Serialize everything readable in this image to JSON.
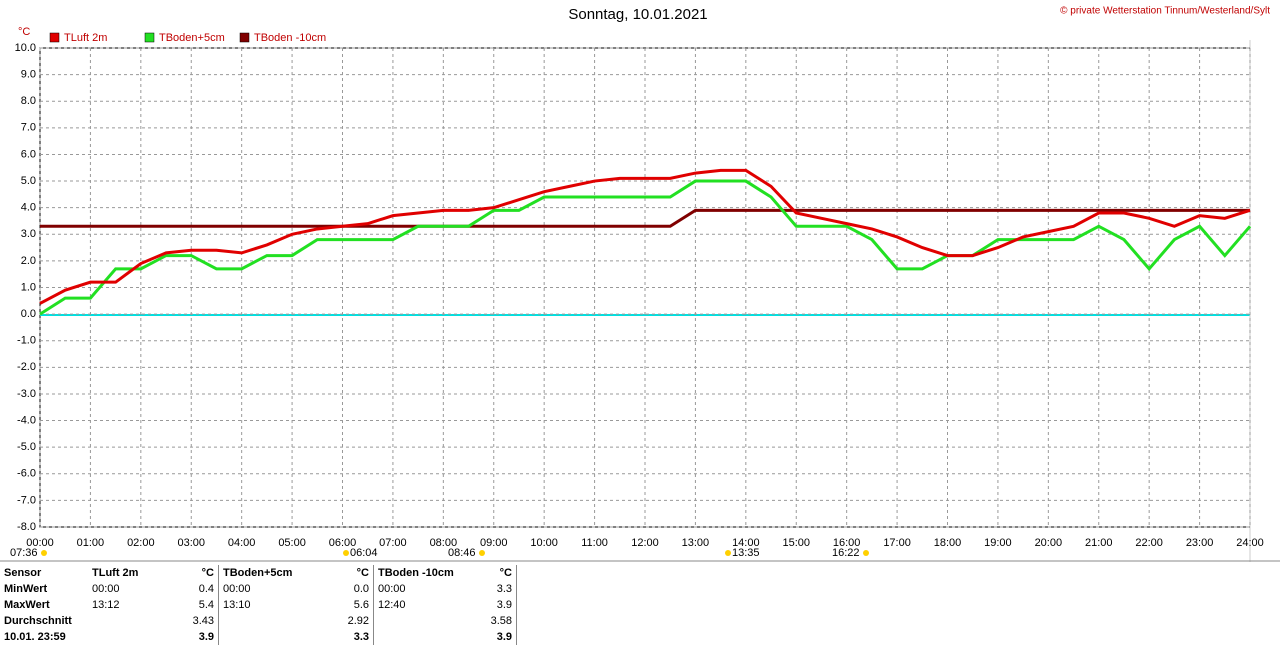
{
  "chart_data": {
    "type": "line",
    "title": "Sonntag, 10.01.2021",
    "credit": "© private Wetterstation Tinnum/Westerland/Sylt",
    "y_label": "°C",
    "x": [
      0,
      0.5,
      1,
      1.5,
      2,
      2.5,
      3,
      3.5,
      4,
      4.5,
      5,
      5.5,
      6,
      6.5,
      7,
      7.5,
      8,
      8.5,
      9,
      9.5,
      10,
      10.5,
      11,
      11.5,
      12,
      12.5,
      13,
      13.5,
      14,
      14.5,
      15,
      15.5,
      16,
      16.5,
      17,
      17.5,
      18,
      18.5,
      19,
      19.5,
      20,
      20.5,
      21,
      21.5,
      22,
      22.5,
      23,
      23.5,
      24
    ],
    "series": [
      {
        "name": "TLuft 2m",
        "color": "#e00000",
        "values": [
          0.4,
          0.9,
          1.2,
          1.2,
          1.9,
          2.3,
          2.4,
          2.4,
          2.3,
          2.6,
          3.0,
          3.2,
          3.3,
          3.4,
          3.7,
          3.8,
          3.9,
          3.9,
          4.0,
          4.3,
          4.6,
          4.8,
          5.0,
          5.1,
          5.1,
          5.1,
          5.3,
          5.4,
          5.4,
          4.8,
          3.8,
          3.6,
          3.4,
          3.2,
          2.9,
          2.5,
          2.2,
          2.2,
          2.5,
          2.9,
          3.1,
          3.3,
          3.8,
          3.8,
          3.6,
          3.3,
          3.7,
          3.6,
          3.9
        ]
      },
      {
        "name": "TBoden+5cm",
        "color": "#22e022",
        "values": [
          0.0,
          0.6,
          0.6,
          1.7,
          1.7,
          2.2,
          2.2,
          1.7,
          1.7,
          2.2,
          2.2,
          2.8,
          2.8,
          2.8,
          2.8,
          3.3,
          3.3,
          3.3,
          3.9,
          3.9,
          4.4,
          4.4,
          4.4,
          4.4,
          4.4,
          4.4,
          5.0,
          5.0,
          5.0,
          4.4,
          3.3,
          3.3,
          3.3,
          2.8,
          1.7,
          1.7,
          2.2,
          2.2,
          2.8,
          2.8,
          2.8,
          2.8,
          3.3,
          2.8,
          1.7,
          2.8,
          3.3,
          2.2,
          3.3
        ]
      },
      {
        "name": "TBoden -10cm",
        "color": "#800000",
        "values": [
          3.3,
          3.3,
          3.3,
          3.3,
          3.3,
          3.3,
          3.3,
          3.3,
          3.3,
          3.3,
          3.3,
          3.3,
          3.3,
          3.3,
          3.3,
          3.3,
          3.3,
          3.3,
          3.3,
          3.3,
          3.3,
          3.3,
          3.3,
          3.3,
          3.3,
          3.3,
          3.9,
          3.9,
          3.9,
          3.9,
          3.9,
          3.9,
          3.9,
          3.9,
          3.9,
          3.9,
          3.9,
          3.9,
          3.9,
          3.9,
          3.9,
          3.9,
          3.9,
          3.9,
          3.9,
          3.9,
          3.9,
          3.9,
          3.9
        ]
      }
    ],
    "xlim": [
      0,
      24
    ],
    "xticks": [
      {
        "value": 0,
        "label": "00:00"
      },
      {
        "value": 1,
        "label": "01:00"
      },
      {
        "value": 2,
        "label": "02:00"
      },
      {
        "value": 3,
        "label": "03:00"
      },
      {
        "value": 4,
        "label": "04:00"
      },
      {
        "value": 5,
        "label": "05:00"
      },
      {
        "value": 6,
        "label": "06:00"
      },
      {
        "value": 7,
        "label": "07:00"
      },
      {
        "value": 8,
        "label": "08:00"
      },
      {
        "value": 9,
        "label": "09:00"
      },
      {
        "value": 10,
        "label": "10:00"
      },
      {
        "value": 11,
        "label": "11:00"
      },
      {
        "value": 12,
        "label": "12:00"
      },
      {
        "value": 13,
        "label": "13:00"
      },
      {
        "value": 14,
        "label": "14:00"
      },
      {
        "value": 15,
        "label": "15:00"
      },
      {
        "value": 16,
        "label": "16:00"
      },
      {
        "value": 17,
        "label": "17:00"
      },
      {
        "value": 18,
        "label": "18:00"
      },
      {
        "value": 19,
        "label": "19:00"
      },
      {
        "value": 20,
        "label": "20:00"
      },
      {
        "value": 21,
        "label": "21:00"
      },
      {
        "value": 22,
        "label": "22:00"
      },
      {
        "value": 23,
        "label": "23:00"
      },
      {
        "value": 24,
        "label": "24:00"
      }
    ],
    "ylim": [
      -8,
      10
    ],
    "yticks": [
      {
        "value": 10,
        "label": "10.0"
      },
      {
        "value": 9,
        "label": "9.0"
      },
      {
        "value": 8,
        "label": "8.0"
      },
      {
        "value": 7,
        "label": "7.0"
      },
      {
        "value": 6,
        "label": "6.0"
      },
      {
        "value": 5,
        "label": "5.0"
      },
      {
        "value": 4,
        "label": "4.0"
      },
      {
        "value": 3,
        "label": "3.0"
      },
      {
        "value": 2,
        "label": "2.0"
      },
      {
        "value": 1,
        "label": "1.0"
      },
      {
        "value": 0,
        "label": "0.0"
      },
      {
        "value": -1,
        "label": "-1.0"
      },
      {
        "value": -2,
        "label": "-2.0"
      },
      {
        "value": -3,
        "label": "-3.0"
      },
      {
        "value": -4,
        "label": "-4.0"
      },
      {
        "value": -5,
        "label": "-5.0"
      },
      {
        "value": -6,
        "label": "-6.0"
      },
      {
        "value": -7,
        "label": "-7.0"
      },
      {
        "value": -8,
        "label": "-8.0"
      }
    ],
    "grid": true,
    "sun_moon_times": [
      "07:36",
      "06:04",
      "08:46",
      "13:35",
      "16:22"
    ]
  },
  "table": {
    "rows": [
      [
        "Sensor",
        "TLuft 2m",
        "°C",
        "TBoden+5cm",
        "°C",
        "TBoden -10cm",
        "°C"
      ],
      [
        "MinWert",
        "00:00",
        "0.4",
        "00:00",
        "0.0",
        "00:00",
        "3.3"
      ],
      [
        "MaxWert",
        "13:12",
        "5.4",
        "13:10",
        "5.6",
        "12:40",
        "3.9"
      ],
      [
        "Durchschnitt",
        null,
        "3.43",
        null,
        "2.92",
        null,
        "3.58"
      ],
      [
        "10.01. 23:59",
        null,
        "3.9",
        null,
        "3.3",
        null,
        "3.9"
      ]
    ]
  }
}
